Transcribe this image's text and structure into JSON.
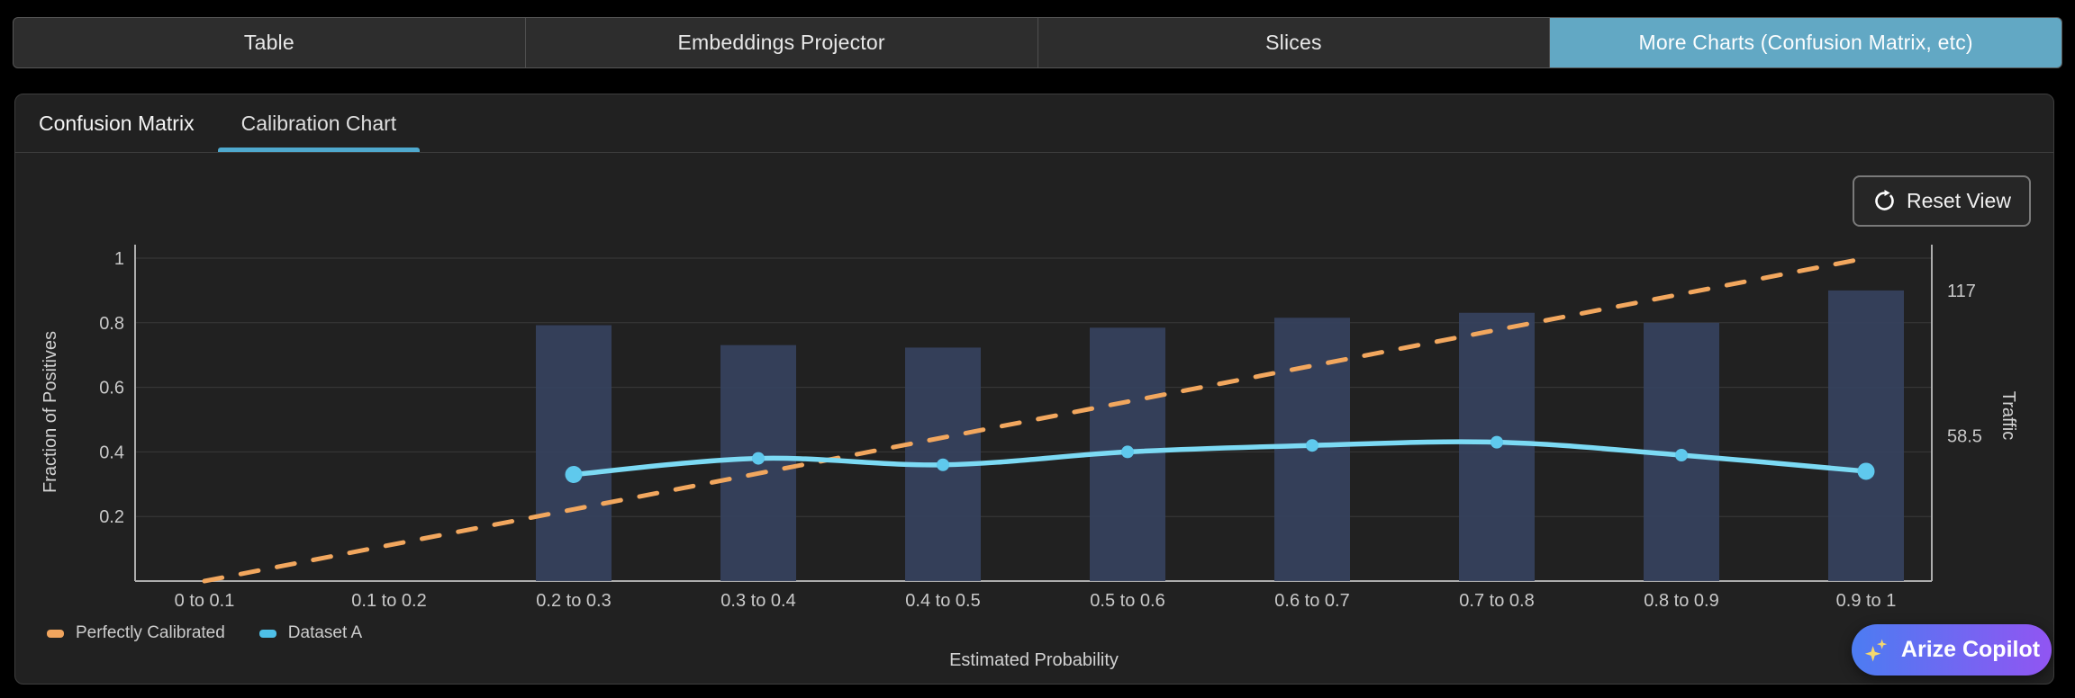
{
  "tabs": {
    "items": [
      {
        "label": "Table",
        "active": false
      },
      {
        "label": "Embeddings Projector",
        "active": false
      },
      {
        "label": "Slices",
        "active": false
      },
      {
        "label": "More Charts (Confusion Matrix, etc)",
        "active": true
      }
    ],
    "active_color": "#62A8C4"
  },
  "subtabs": {
    "items": [
      {
        "label": "Confusion Matrix",
        "active": false
      },
      {
        "label": "Calibration Chart",
        "active": true
      }
    ],
    "underline_color": "#4FA9CE"
  },
  "toolbar": {
    "reset_view_label": "Reset View"
  },
  "copilot": {
    "label": "Arize Copilot",
    "icon": "sparkles-icon",
    "gradient": [
      "#4C7CF2",
      "#9155F2"
    ],
    "sparkle_color": "#F6D96E"
  },
  "chart_data": {
    "type": "bar",
    "categories": [
      "0 to 0.1",
      "0.1 to 0.2",
      "0.2 to 0.3",
      "0.3 to 0.4",
      "0.4 to 0.5",
      "0.5 to 0.6",
      "0.6 to 0.7",
      "0.7 to 0.8",
      "0.8 to 0.9",
      "0.9 to 1"
    ],
    "series": [
      {
        "name": "Traffic",
        "type": "bar",
        "yaxis": "right",
        "color": "#36425E",
        "values": [
          null,
          null,
          103,
          95,
          94,
          102,
          106,
          108,
          104,
          117
        ]
      },
      {
        "name": "Dataset A",
        "type": "line",
        "yaxis": "left",
        "color": "#7CDAF4",
        "marker_color": "#5FC9ED",
        "values": [
          null,
          null,
          0.33,
          0.38,
          0.36,
          0.4,
          0.42,
          0.43,
          0.39,
          0.34
        ]
      },
      {
        "name": "Perfectly Calibrated",
        "type": "line",
        "style": "dashed",
        "yaxis": "left",
        "color": "#F2A75E",
        "values": [
          0,
          0.11,
          0.22,
          0.33,
          0.44,
          0.56,
          0.67,
          0.78,
          0.89,
          1
        ]
      }
    ],
    "left_axis": {
      "label": "Fraction of Positives",
      "ticks": [
        0.2,
        0.4,
        0.6,
        0.8,
        1
      ],
      "range": [
        0,
        1
      ]
    },
    "right_axis": {
      "label": "Traffic",
      "ticks": [
        58.5,
        117
      ],
      "range": [
        0,
        130
      ]
    },
    "x_axis": {
      "label": "Estimated Probability"
    },
    "legend": [
      {
        "label": "Perfectly Calibrated",
        "color": "#F1A55E"
      },
      {
        "label": "Dataset A",
        "color": "#4EC0E8"
      }
    ],
    "grid": true,
    "legend_position": "bottom-left"
  }
}
